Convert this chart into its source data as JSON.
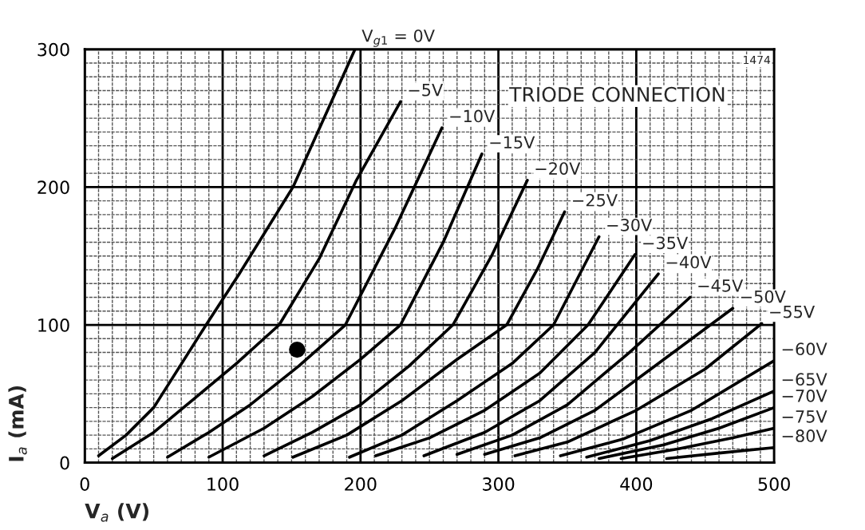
{
  "chart_data": {
    "type": "line",
    "xlabel": "V$_{a}$ (V)",
    "ylabel": "I$_{a}$ (mA)",
    "xlim": [
      0,
      500
    ],
    "ylim": [
      0,
      300
    ],
    "xticks": [
      0,
      100,
      200,
      300,
      400,
      500
    ],
    "yticks": [
      0,
      100,
      200,
      300
    ],
    "grid": true,
    "legend": false,
    "marker": "none",
    "line_style": "solid",
    "annotations": [
      "TRIODE CONNECTION",
      "1474"
    ],
    "series": [
      {
        "name": "V$_{g1}$ = 0V",
        "color": "#000000",
        "x": [
          10,
          30,
          50,
          88,
          112,
          151,
          196
        ],
        "values": [
          5,
          20,
          40,
          100,
          137,
          200,
          300
        ]
      },
      {
        "name": "−5V",
        "color": "#000000",
        "x": [
          20,
          50,
          80,
          110,
          141,
          170,
          197,
          229
        ],
        "values": [
          3,
          22,
          47,
          72,
          100,
          148,
          205,
          262
        ]
      },
      {
        "name": "−10V",
        "color": "#000000",
        "x": [
          60,
          90,
          120,
          155,
          189,
          225,
          259
        ],
        "values": [
          4,
          22,
          42,
          70,
          100,
          170,
          243
        ]
      },
      {
        "name": "−15V",
        "color": "#000000",
        "x": [
          90,
          130,
          165,
          200,
          229,
          260,
          288
        ],
        "values": [
          4,
          25,
          48,
          75,
          100,
          160,
          224
        ]
      },
      {
        "name": "−20V",
        "color": "#000000",
        "x": [
          130,
          165,
          200,
          235,
          267,
          295,
          321
        ],
        "values": [
          5,
          22,
          42,
          70,
          100,
          150,
          205
        ]
      },
      {
        "name": "−25V",
        "color": "#000000",
        "x": [
          151,
          190,
          230,
          270,
          306,
          328,
          348
        ],
        "values": [
          4,
          20,
          45,
          75,
          100,
          140,
          182
        ]
      },
      {
        "name": "−30V",
        "color": "#000000",
        "x": [
          192,
          230,
          270,
          310,
          340,
          373
        ],
        "values": [
          4,
          20,
          45,
          72,
          100,
          164
        ]
      },
      {
        "name": "−35V",
        "color": "#000000",
        "x": [
          211,
          250,
          290,
          330,
          365,
          399
        ],
        "values": [
          5,
          18,
          38,
          65,
          100,
          151
        ]
      },
      {
        "name": "−40V",
        "color": "#000000",
        "x": [
          246,
          290,
          330,
          370,
          416
        ],
        "values": [
          5,
          22,
          45,
          80,
          137
        ]
      },
      {
        "name": "−45V",
        "color": "#000000",
        "x": [
          270,
          310,
          350,
          395,
          439
        ],
        "values": [
          6,
          20,
          42,
          80,
          120
        ]
      },
      {
        "name": "−50V",
        "color": "#000000",
        "x": [
          290,
          330,
          370,
          420,
          470
        ],
        "values": [
          6,
          18,
          38,
          75,
          112
        ]
      },
      {
        "name": "−55V",
        "color": "#000000",
        "x": [
          312,
          350,
          400,
          450,
          491
        ],
        "values": [
          5,
          15,
          38,
          68,
          101
        ]
      },
      {
        "name": "−60V",
        "color": "#000000",
        "x": [
          345,
          390,
          440,
          500
        ],
        "values": [
          5,
          17,
          38,
          74
        ]
      },
      {
        "name": "−65V",
        "color": "#000000",
        "x": [
          364,
          410,
          455,
          500
        ],
        "values": [
          4,
          16,
          32,
          52
        ]
      },
      {
        "name": "−70V",
        "color": "#000000",
        "x": [
          373,
          420,
          460,
          500
        ],
        "values": [
          3,
          13,
          25,
          40
        ]
      },
      {
        "name": "−75V",
        "color": "#000000",
        "x": [
          389,
          430,
          470,
          500
        ],
        "values": [
          3,
          10,
          18,
          25
        ]
      },
      {
        "name": "−80V",
        "color": "#000000",
        "x": [
          422,
          460,
          500
        ],
        "values": [
          3,
          7,
          11
        ]
      },
      {
        "type": "scatter",
        "marker": "circle",
        "color": "#000000",
        "x": [
          154
        ],
        "values": [
          82
        ]
      }
    ]
  }
}
